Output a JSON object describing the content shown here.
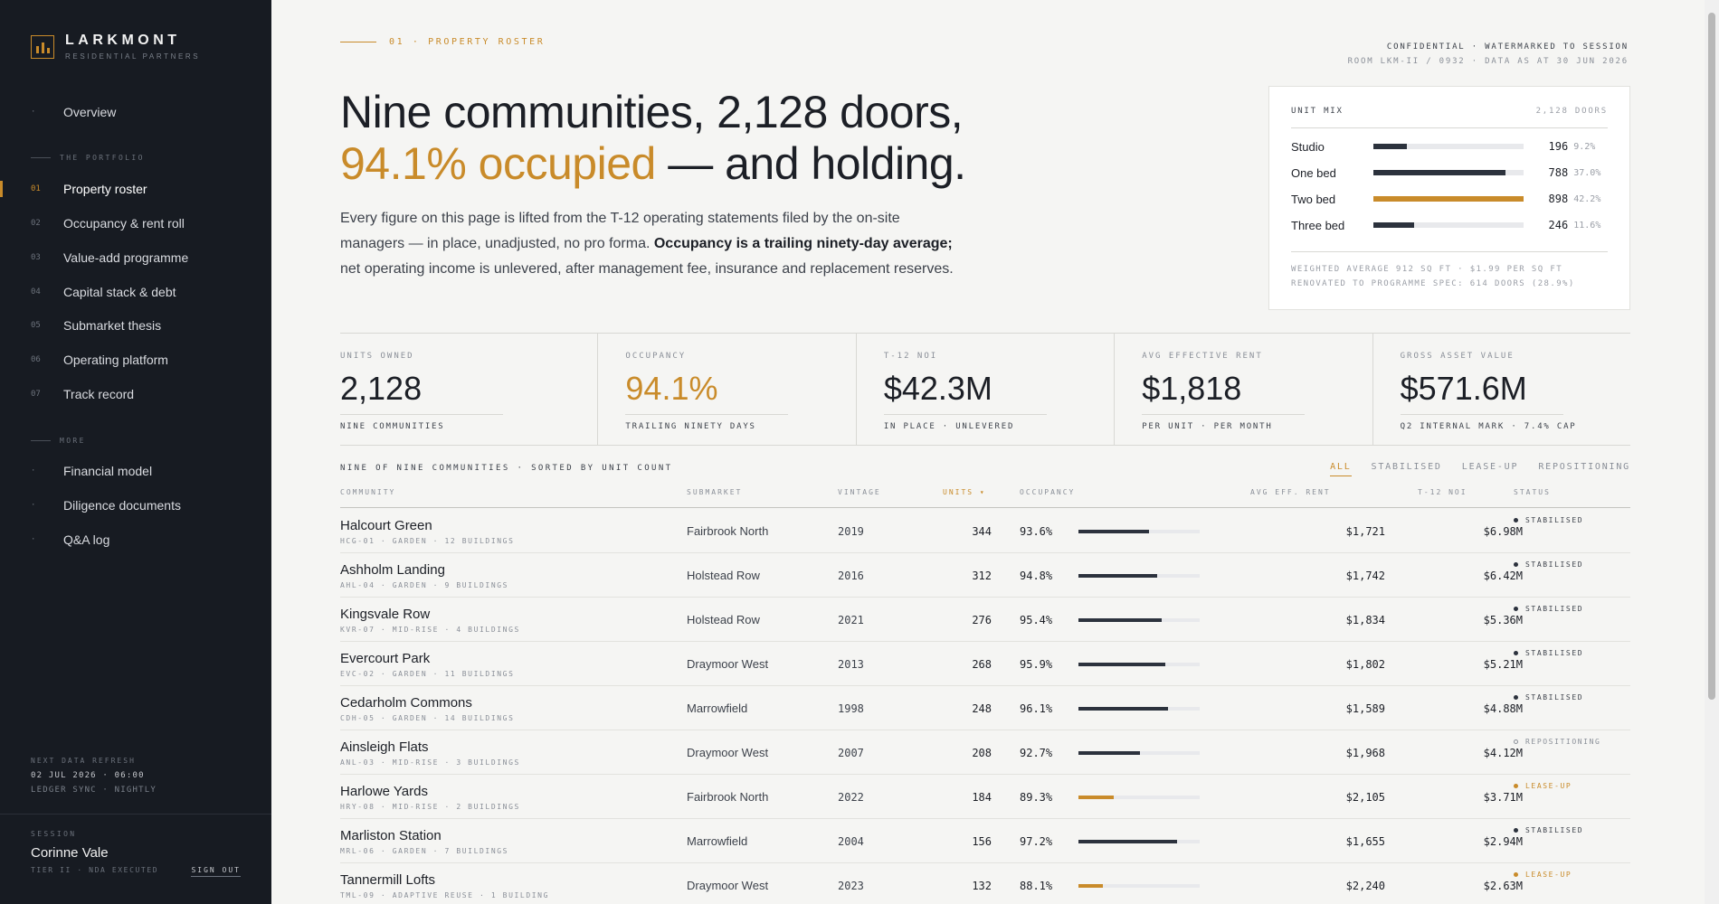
{
  "brand": {
    "name": "LARKMONT",
    "sub": "RESIDENTIAL PARTNERS",
    "accent": "#c98b2a"
  },
  "nav": {
    "overview": "Overview",
    "portfolio_label": "THE PORTFOLIO",
    "items": [
      {
        "num": "01",
        "label": "Property roster",
        "active": true
      },
      {
        "num": "02",
        "label": "Occupancy & rent roll"
      },
      {
        "num": "03",
        "label": "Value-add programme"
      },
      {
        "num": "04",
        "label": "Capital stack & debt"
      },
      {
        "num": "05",
        "label": "Submarket thesis"
      },
      {
        "num": "06",
        "label": "Operating platform"
      },
      {
        "num": "07",
        "label": "Track record"
      }
    ],
    "more_label": "MORE",
    "more": [
      "Financial model",
      "Diligence documents",
      "Q&A log"
    ],
    "bullet": "·"
  },
  "refresh": {
    "label": "NEXT DATA REFRESH",
    "value": "02 JUL 2026 · 06:00",
    "sub": "LEDGER SYNC · NIGHTLY"
  },
  "session": {
    "label": "SESSION",
    "name": "Corinne Vale",
    "tier": "TIER II · NDA EXECUTED",
    "signout": "SIGN OUT"
  },
  "header": {
    "eyebrow": "01 · PROPERTY ROSTER",
    "confidential": "CONFIDENTIAL · WATERMARKED TO SESSION",
    "room": "ROOM LKM-II / 0932 · DATA AS AT 30 JUN 2026",
    "headline_1": "Nine communities, 2,128 doors,",
    "headline_accent": "94.1% occupied",
    "headline_2": " — and holding.",
    "lede_1": "Every figure on this page is lifted from the T-12 operating statements filed by the on-site managers — in place, unadjusted, no pro forma. ",
    "lede_bold": "Occupancy is a trailing ninety-day average;",
    "lede_2": " net operating income is unlevered, after management fee, insurance and replacement reserves."
  },
  "unit_mix": {
    "title": "UNIT MIX",
    "count": "2,128 DOORS",
    "rows": [
      {
        "label": "Studio",
        "count": "196",
        "pct": "9.2%",
        "share": 0.22
      },
      {
        "label": "One bed",
        "count": "788",
        "pct": "37.0%",
        "share": 0.88
      },
      {
        "label": "Two bed",
        "count": "898",
        "pct": "42.2%",
        "share": 1.0,
        "highlight": true
      },
      {
        "label": "Three bed",
        "count": "246",
        "pct": "11.6%",
        "share": 0.27
      }
    ],
    "foot_1": "WEIGHTED AVERAGE 912 SQ FT · $1.99 PER SQ FT",
    "foot_2": "RENOVATED TO PROGRAMME SPEC: 614 DOORS (28.9%)"
  },
  "kpis": [
    {
      "label": "UNITS OWNED",
      "value": "2,128",
      "sub": "NINE COMMUNITIES"
    },
    {
      "label": "OCCUPANCY",
      "value": "94.1%",
      "sub": "TRAILING NINETY DAYS",
      "accent": true
    },
    {
      "label": "T-12 NOI",
      "value": "$42.3M",
      "sub": "IN PLACE · UNLEVERED"
    },
    {
      "label": "AVG EFFECTIVE RENT",
      "value": "$1,818",
      "sub": "PER UNIT · PER MONTH"
    },
    {
      "label": "GROSS ASSET VALUE",
      "value": "$571.6M",
      "sub": "Q2 INTERNAL MARK · 7.4% CAP"
    }
  ],
  "table": {
    "caption": "NINE OF NINE COMMUNITIES · SORTED BY UNIT COUNT",
    "filters": [
      "ALL",
      "STABILISED",
      "LEASE-UP",
      "REPOSITIONING"
    ],
    "columns": {
      "community": "COMMUNITY",
      "submarket": "SUBMARKET",
      "vintage": "VINTAGE",
      "units": "UNITS ▾",
      "occupancy": "OCCUPANCY",
      "rent": "AVG EFF. RENT",
      "noi": "T-12 NOI",
      "status": "STATUS"
    },
    "rows": [
      {
        "name": "Halcourt Green",
        "meta": "HCG-01 · GARDEN · 12 BUILDINGS",
        "submarket": "Fairbrook North",
        "vintage": "2019",
        "units": "344",
        "occ": "93.6%",
        "occ_bar": 0.58,
        "rent": "$1,721",
        "noi": "$6.98M",
        "status": "STABILISED",
        "kind": "stabilised"
      },
      {
        "name": "Ashholm Landing",
        "meta": "AHL-04 · GARDEN · 9 BUILDINGS",
        "submarket": "Holstead Row",
        "vintage": "2016",
        "units": "312",
        "occ": "94.8%",
        "occ_bar": 0.65,
        "rent": "$1,742",
        "noi": "$6.42M",
        "status": "STABILISED",
        "kind": "stabilised"
      },
      {
        "name": "Kingsvale Row",
        "meta": "KVR-07 · MID-RISE · 4 BUILDINGS",
        "submarket": "Holstead Row",
        "vintage": "2021",
        "units": "276",
        "occ": "95.4%",
        "occ_bar": 0.69,
        "rent": "$1,834",
        "noi": "$5.36M",
        "status": "STABILISED",
        "kind": "stabilised"
      },
      {
        "name": "Evercourt Park",
        "meta": "EVC-02 · GARDEN · 11 BUILDINGS",
        "submarket": "Draymoor West",
        "vintage": "2013",
        "units": "268",
        "occ": "95.9%",
        "occ_bar": 0.72,
        "rent": "$1,802",
        "noi": "$5.21M",
        "status": "STABILISED",
        "kind": "stabilised"
      },
      {
        "name": "Cedarholm Commons",
        "meta": "CDH-05 · GARDEN · 14 BUILDINGS",
        "submarket": "Marrowfield",
        "vintage": "1998",
        "units": "248",
        "occ": "96.1%",
        "occ_bar": 0.74,
        "rent": "$1,589",
        "noi": "$4.88M",
        "status": "STABILISED",
        "kind": "stabilised"
      },
      {
        "name": "Ainsleigh Flats",
        "meta": "ANL-03 · MID-RISE · 3 BUILDINGS",
        "submarket": "Draymoor West",
        "vintage": "2007",
        "units": "208",
        "occ": "92.7%",
        "occ_bar": 0.51,
        "rent": "$1,968",
        "noi": "$4.12M",
        "status": "REPOSITIONING",
        "kind": "repositioning"
      },
      {
        "name": "Harlowe Yards",
        "meta": "HRY-08 · MID-RISE · 2 BUILDINGS",
        "submarket": "Fairbrook North",
        "vintage": "2022",
        "units": "184",
        "occ": "89.3%",
        "occ_bar": 0.29,
        "rent": "$2,105",
        "noi": "$3.71M",
        "status": "LEASE-UP",
        "kind": "leaseup"
      },
      {
        "name": "Marliston Station",
        "meta": "MRL-06 · GARDEN · 7 BUILDINGS",
        "submarket": "Marrowfield",
        "vintage": "2004",
        "units": "156",
        "occ": "97.2%",
        "occ_bar": 0.81,
        "rent": "$1,655",
        "noi": "$2.94M",
        "status": "STABILISED",
        "kind": "stabilised"
      },
      {
        "name": "Tannermill Lofts",
        "meta": "TML-09 · ADAPTIVE REUSE · 1 BUILDING",
        "submarket": "Draymoor West",
        "vintage": "2023",
        "units": "132",
        "occ": "88.1%",
        "occ_bar": 0.2,
        "rent": "$2,240",
        "noi": "$2.63M",
        "status": "LEASE-UP",
        "kind": "leaseup"
      }
    ]
  }
}
